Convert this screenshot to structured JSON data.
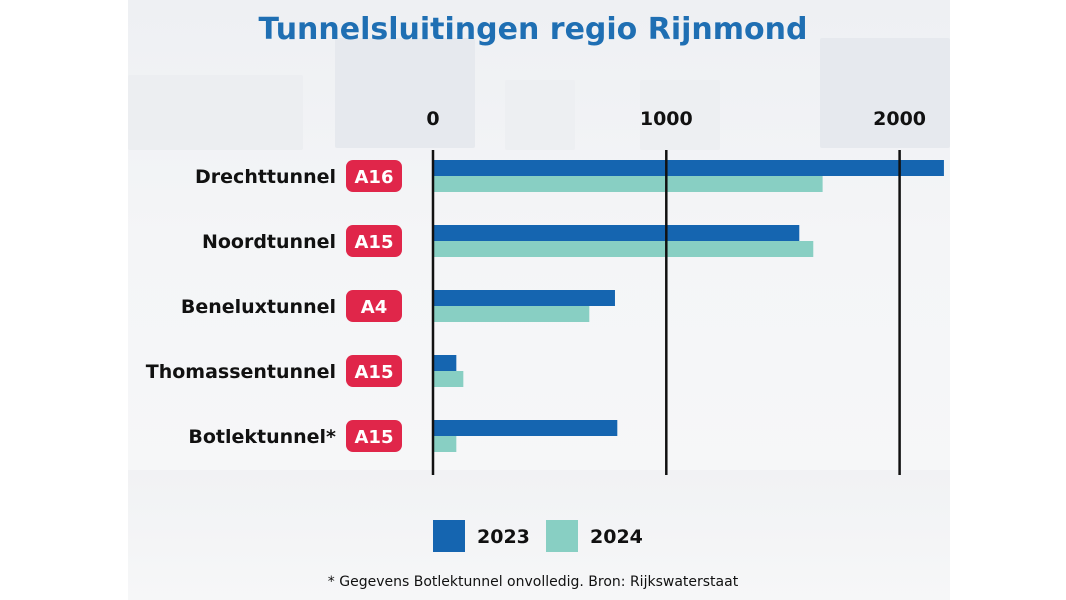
{
  "title": "Tunnelsluitingen regio Rijnmond",
  "footnote": "* Gegevens Botlektunnel onvolledig. Bron: Rijkswaterstaat",
  "colors": {
    "title": "#1f6fb3",
    "series_2023": "#1565b0",
    "series_2024": "#88cfc3",
    "badge": "#e0264a",
    "gridline": "#111111"
  },
  "chart_data": {
    "type": "bar",
    "orientation": "horizontal",
    "title": "Tunnelsluitingen regio Rijnmond",
    "categories": [
      "Drechttunnel",
      "Noordtunnel",
      "Beneluxtunnel",
      "Thomassentunnel",
      "Botlektunnel*"
    ],
    "badges": [
      "A16",
      "A15",
      "A4",
      "A15",
      "A15"
    ],
    "series": [
      {
        "name": "2023",
        "values": [
          2190,
          1570,
          780,
          100,
          790
        ]
      },
      {
        "name": "2024",
        "values": [
          1670,
          1630,
          670,
          130,
          100
        ]
      }
    ],
    "xlim": [
      0,
      2200
    ],
    "xticks": [
      0,
      1000,
      2000
    ],
    "tick_position": "top",
    "grid": true,
    "legend_position": "bottom-center"
  }
}
